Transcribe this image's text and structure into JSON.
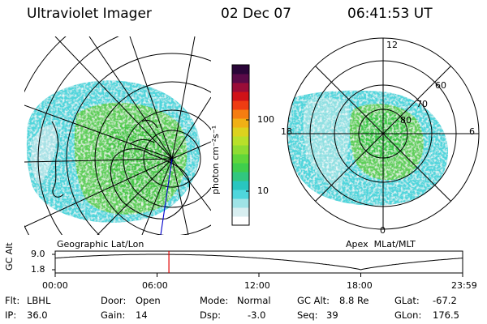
{
  "header": {
    "instrument": "Ultraviolet Imager",
    "date": "02 Dec 07",
    "time": "06:41:53 UT"
  },
  "colorbar": {
    "unit_label": "photon cm⁻²s⁻¹",
    "ticks": [
      "100",
      "10"
    ],
    "colors": [
      "#ffffff",
      "#d8eef0",
      "#9fe3e6",
      "#4fd6dc",
      "#29c6c0",
      "#31c77f",
      "#3fce4c",
      "#60d63a",
      "#8fdc32",
      "#b8e02a",
      "#dcd21e",
      "#f0b015",
      "#f57d10",
      "#ef3c12",
      "#d01218",
      "#9a0c38",
      "#5a0a48",
      "#2a0538"
    ]
  },
  "maps": {
    "geographic_label": "Geographic Lat/Lon",
    "apex_label": "Apex  MLat/MLT",
    "apex_mlt_labels": {
      "top": "12",
      "bottom": "0",
      "left": "18",
      "right": "6"
    },
    "apex_lat_labels": [
      "60",
      "70",
      "80"
    ]
  },
  "gc_alt_plot": {
    "axis_label": "GC Alt",
    "ymax_label": "9.0",
    "ymin_label": "1.8",
    "x_ticks": [
      "00:00",
      "06:00",
      "12:00",
      "18:00",
      "23:59"
    ],
    "current_time_marker": "06:41:53"
  },
  "status": {
    "flt_label": "Flt:",
    "flt_value": "LBHL",
    "ip_label": "IP:",
    "ip_value": "36.0",
    "door_label": "Door:",
    "door_value": "Open",
    "gain_label": "Gain:",
    "gain_value": "14",
    "mode_label": "Mode:",
    "mode_value": "Normal",
    "dsp_label": "Dsp:",
    "dsp_value": "-3.0",
    "gcalt_label": "GC Alt:",
    "gcalt_value": "8.8 Re",
    "seq_label": "Seq:",
    "seq_value": "39",
    "glat_label": "GLat:",
    "glat_value": "-67.2",
    "glon_label": "GLon:",
    "glon_value": "176.5"
  }
}
